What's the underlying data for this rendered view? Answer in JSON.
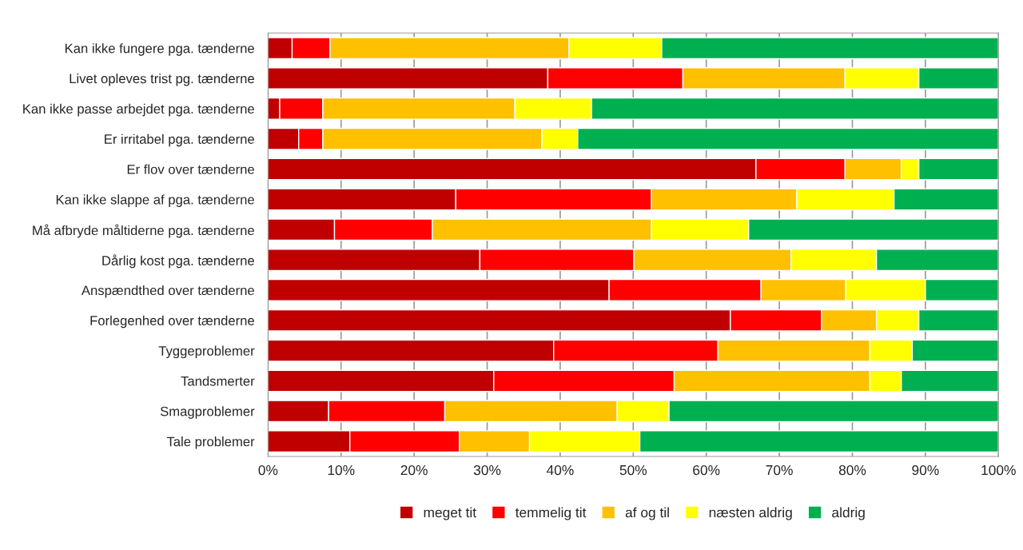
{
  "chart_data": {
    "type": "bar",
    "orientation": "horizontal",
    "stacked": true,
    "categories": [
      "Kan ikke fungere pga. tænderne",
      "Livet opleves trist pg. tænderne",
      "Kan ikke passe arbejdet pga. tænderne",
      "Er irritabel pga. tænderne",
      "Er flov over tænderne",
      "Kan ikke slappe af pga. tænderne",
      "Må afbryde måltiderne pga. tænderne",
      "Dårlig kost pga. tænderne",
      "Anspændthed over tænderne",
      "Forlegenhed over tænderne",
      "Tyggeproblemer",
      "Tandsmerter",
      "Smagproblemer",
      "Tale problemer"
    ],
    "series": [
      {
        "name": "meget tit",
        "color": "#c00000",
        "values": [
          3.3,
          38.3,
          1.6,
          4.2,
          66.8,
          25.7,
          9.1,
          29.0,
          46.7,
          63.3,
          39.1,
          30.9,
          8.3,
          11.2
        ]
      },
      {
        "name": "temmelig tit",
        "color": "#ff0000",
        "values": [
          5.2,
          18.5,
          5.9,
          3.3,
          12.2,
          26.8,
          13.4,
          21.1,
          20.8,
          12.5,
          22.5,
          24.7,
          15.9,
          15.0
        ]
      },
      {
        "name": "af og til",
        "color": "#ffc000",
        "values": [
          32.7,
          22.2,
          26.3,
          30.0,
          7.7,
          19.9,
          30.0,
          21.5,
          11.6,
          7.5,
          20.8,
          26.8,
          23.6,
          9.6
        ]
      },
      {
        "name": "næsten aldrig",
        "color": "#ffff00",
        "values": [
          12.7,
          10.1,
          10.5,
          4.9,
          2.4,
          13.3,
          13.3,
          11.7,
          10.9,
          5.8,
          5.8,
          4.3,
          7.1,
          15.1
        ]
      },
      {
        "name": "aldrig",
        "color": "#00b050",
        "values": [
          46.1,
          10.9,
          55.7,
          57.6,
          10.9,
          14.3,
          34.2,
          16.7,
          10.0,
          10.9,
          11.8,
          13.3,
          45.1,
          49.1
        ]
      }
    ],
    "xlim": [
      0,
      100
    ],
    "xticks": [
      {
        "value": 0,
        "label": "0%"
      },
      {
        "value": 10,
        "label": "10%"
      },
      {
        "value": 20,
        "label": "20%"
      },
      {
        "value": 30,
        "label": "30%"
      },
      {
        "value": 40,
        "label": "40%"
      },
      {
        "value": 50,
        "label": "50%"
      },
      {
        "value": 60,
        "label": "60%"
      },
      {
        "value": 70,
        "label": "70%"
      },
      {
        "value": 80,
        "label": "80%"
      },
      {
        "value": 90,
        "label": "90%"
      },
      {
        "value": 100,
        "label": "100%"
      }
    ],
    "grid": "x",
    "legend": "bottom"
  }
}
